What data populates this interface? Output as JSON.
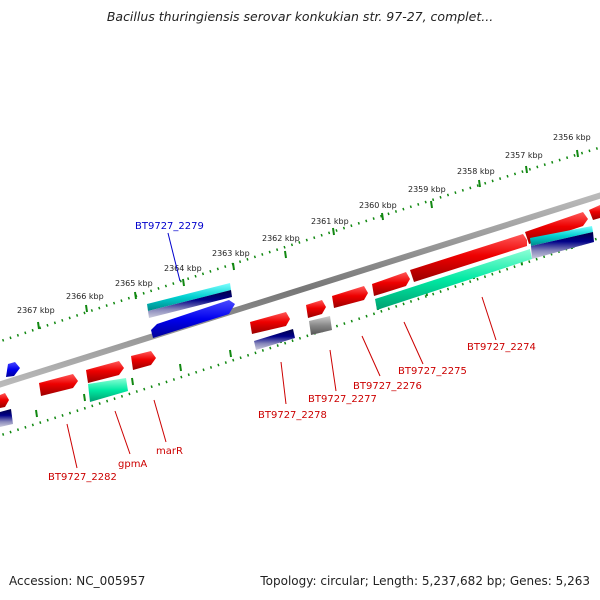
{
  "title": "Bacillus thuringiensis serovar konkukian str. 97-27, complet...",
  "accession": "Accession: NC_005957",
  "topology": "Topology: circular; Length: 5,237,682 bp; Genes: 5,263",
  "ticks": [
    "2356 kbp",
    "2357 kbp",
    "2358 kbp",
    "2359 kbp",
    "2360 kbp",
    "2361 kbp",
    "2362 kbp",
    "2363 kbp",
    "2364 kbp",
    "2365 kbp",
    "2366 kbp",
    "2367 kbp"
  ],
  "gene_labels": [
    {
      "text": "BT9727_2279",
      "color": "#0000cc"
    },
    {
      "text": "BT9727_2274",
      "color": "#cc0000"
    },
    {
      "text": "BT9727_2275",
      "color": "#cc0000"
    },
    {
      "text": "BT9727_2276",
      "color": "#cc0000"
    },
    {
      "text": "BT9727_2277",
      "color": "#cc0000"
    },
    {
      "text": "BT9727_2278",
      "color": "#cc0000"
    },
    {
      "text": "marR",
      "color": "#cc0000"
    },
    {
      "text": "gpmA",
      "color": "#cc0000"
    },
    {
      "text": "BT9727_2282",
      "color": "#cc0000"
    }
  ],
  "colors": {
    "forward_gene": "#e00000",
    "reverse_gene": "#0000dd",
    "cog_cyan": "#00cccc",
    "cog_teal": "#00e0a0",
    "cog_navy": "#000066",
    "cog_gray": "#666666",
    "tick_green": "#008800",
    "backbone": "#888888"
  }
}
